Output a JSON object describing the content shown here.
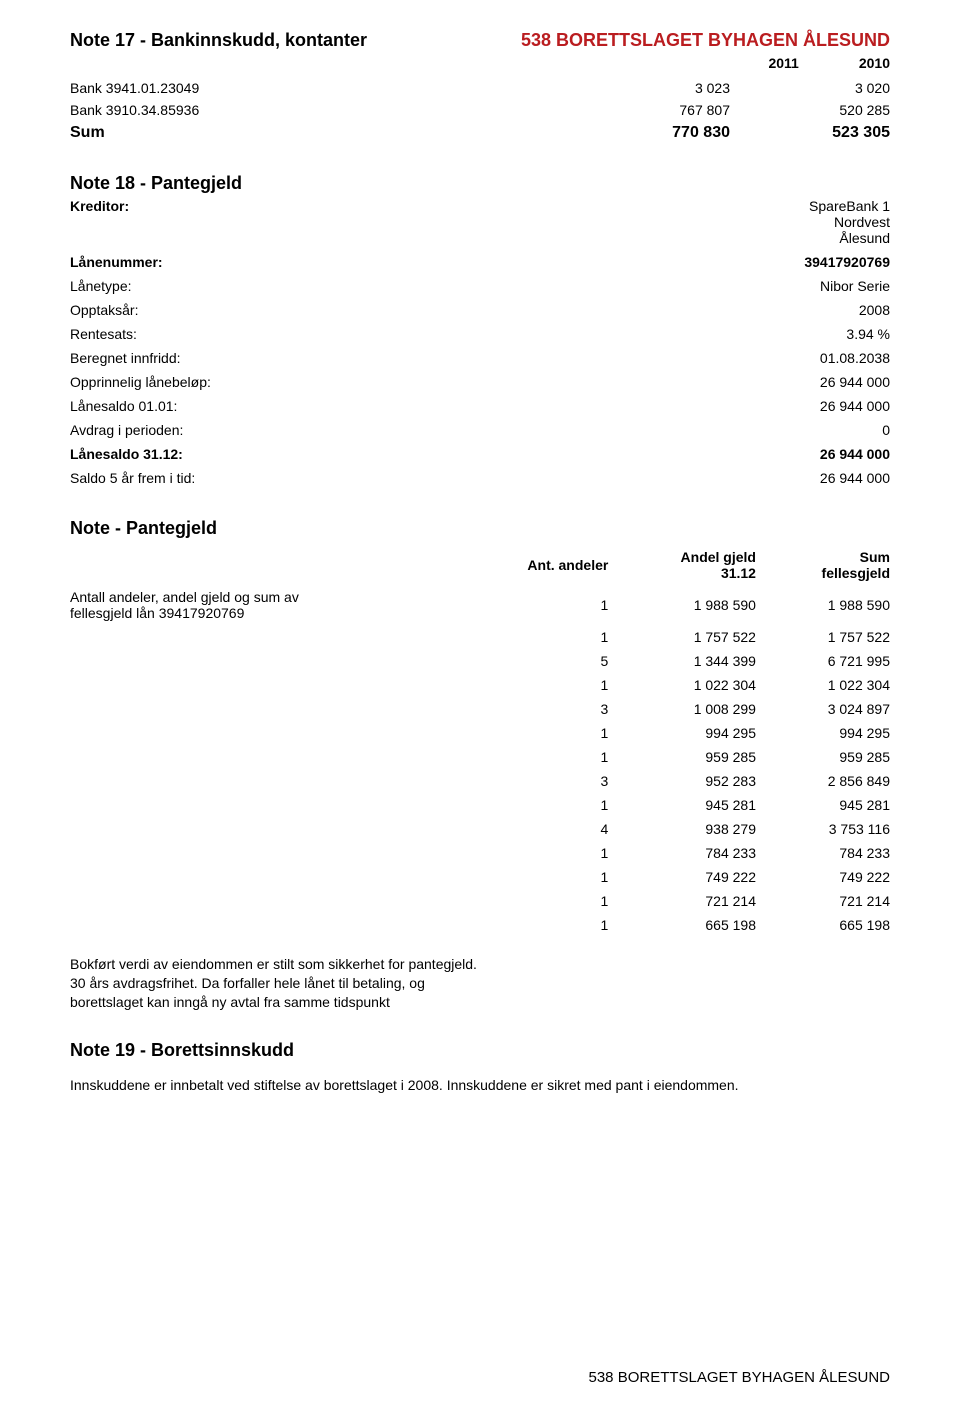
{
  "header": {
    "note17_title": "Note 17 - Bankinnskudd, kontanter",
    "brand": "538 BORETTSLAGET BYHAGEN ÅLESUND",
    "year1": "2011",
    "year2": "2010"
  },
  "bank_rows": [
    {
      "label": "Bank 3941.01.23049",
      "v1": "3 023",
      "v2": "3 020"
    },
    {
      "label": "Bank 3910.34.85936",
      "v1": "767 807",
      "v2": "520 285"
    }
  ],
  "bank_sum": {
    "label": "Sum",
    "v1": "770 830",
    "v2": "523 305"
  },
  "note18": {
    "title": "Note 18 - Pantegjeld",
    "rows": [
      {
        "label": "Kreditor:",
        "value": "SpareBank 1\nNordvest\nÅlesund",
        "bold_label": true,
        "multi": true
      },
      {
        "label": "Lånenummer:",
        "value": "39417920769",
        "bold_label": true,
        "bold_value": true
      },
      {
        "label": "Lånetype:",
        "value": "Nibor Serie"
      },
      {
        "label": "Opptaksår:",
        "value": "2008"
      },
      {
        "label": "Rentesats:",
        "value": "3.94 %"
      },
      {
        "label": "Beregnet innfridd:",
        "value": "01.08.2038"
      },
      {
        "label": "Opprinnelig lånebeløp:",
        "value": "26 944 000"
      },
      {
        "label": "Lånesaldo 01.01:",
        "value": "26 944 000"
      },
      {
        "label": "Avdrag i perioden:",
        "value": "0"
      },
      {
        "label": "Lånesaldo 31.12:",
        "value": "26 944 000",
        "bold_label": true,
        "bold_value": true
      },
      {
        "label": "Saldo 5 år frem i tid:",
        "value": "26 944 000"
      }
    ]
  },
  "note_p": {
    "title": "Note  - Pantegjeld",
    "head": {
      "c1": "Ant. andeler",
      "c2": "Andel gjeld\n31.12",
      "c3": "Sum\nfellesgjeld"
    },
    "first_row_label": "Antall andeler, andel gjeld og sum av\nfellesgjeld lån 39417920769",
    "rows": [
      {
        "n": "1",
        "g": "1 988 590",
        "s": "1 988 590"
      },
      {
        "n": "1",
        "g": "1 757 522",
        "s": "1 757 522"
      },
      {
        "n": "5",
        "g": "1 344 399",
        "s": "6 721 995"
      },
      {
        "n": "1",
        "g": "1 022 304",
        "s": "1 022 304"
      },
      {
        "n": "3",
        "g": "1 008 299",
        "s": "3 024 897"
      },
      {
        "n": "1",
        "g": "994 295",
        "s": "994 295"
      },
      {
        "n": "1",
        "g": "959 285",
        "s": "959 285"
      },
      {
        "n": "3",
        "g": "952 283",
        "s": "2 856 849"
      },
      {
        "n": "1",
        "g": "945 281",
        "s": "945 281"
      },
      {
        "n": "4",
        "g": "938 279",
        "s": "3 753 116"
      },
      {
        "n": "1",
        "g": "784 233",
        "s": "784 233"
      },
      {
        "n": "1",
        "g": "749 222",
        "s": "749 222"
      },
      {
        "n": "1",
        "g": "721 214",
        "s": "721 214"
      },
      {
        "n": "1",
        "g": "665 198",
        "s": "665 198"
      }
    ]
  },
  "footer1": "Bokført verdi av eiendommen er stilt som sikkerhet for pantegjeld.\n30 års avdragsfrihet. Da forfaller hele lånet  til betaling, og\n borettslaget kan inngå ny avtal fra samme tidspunkt",
  "note19": {
    "title": "Note 19 - Borettsinnskudd",
    "text": "Innskuddene er innbetalt ved stiftelse av borettslaget i 2008. Innskuddene er sikret med pant i eiendommen."
  },
  "footer_brand": "538 BORETTSLAGET BYHAGEN ÅLESUND"
}
